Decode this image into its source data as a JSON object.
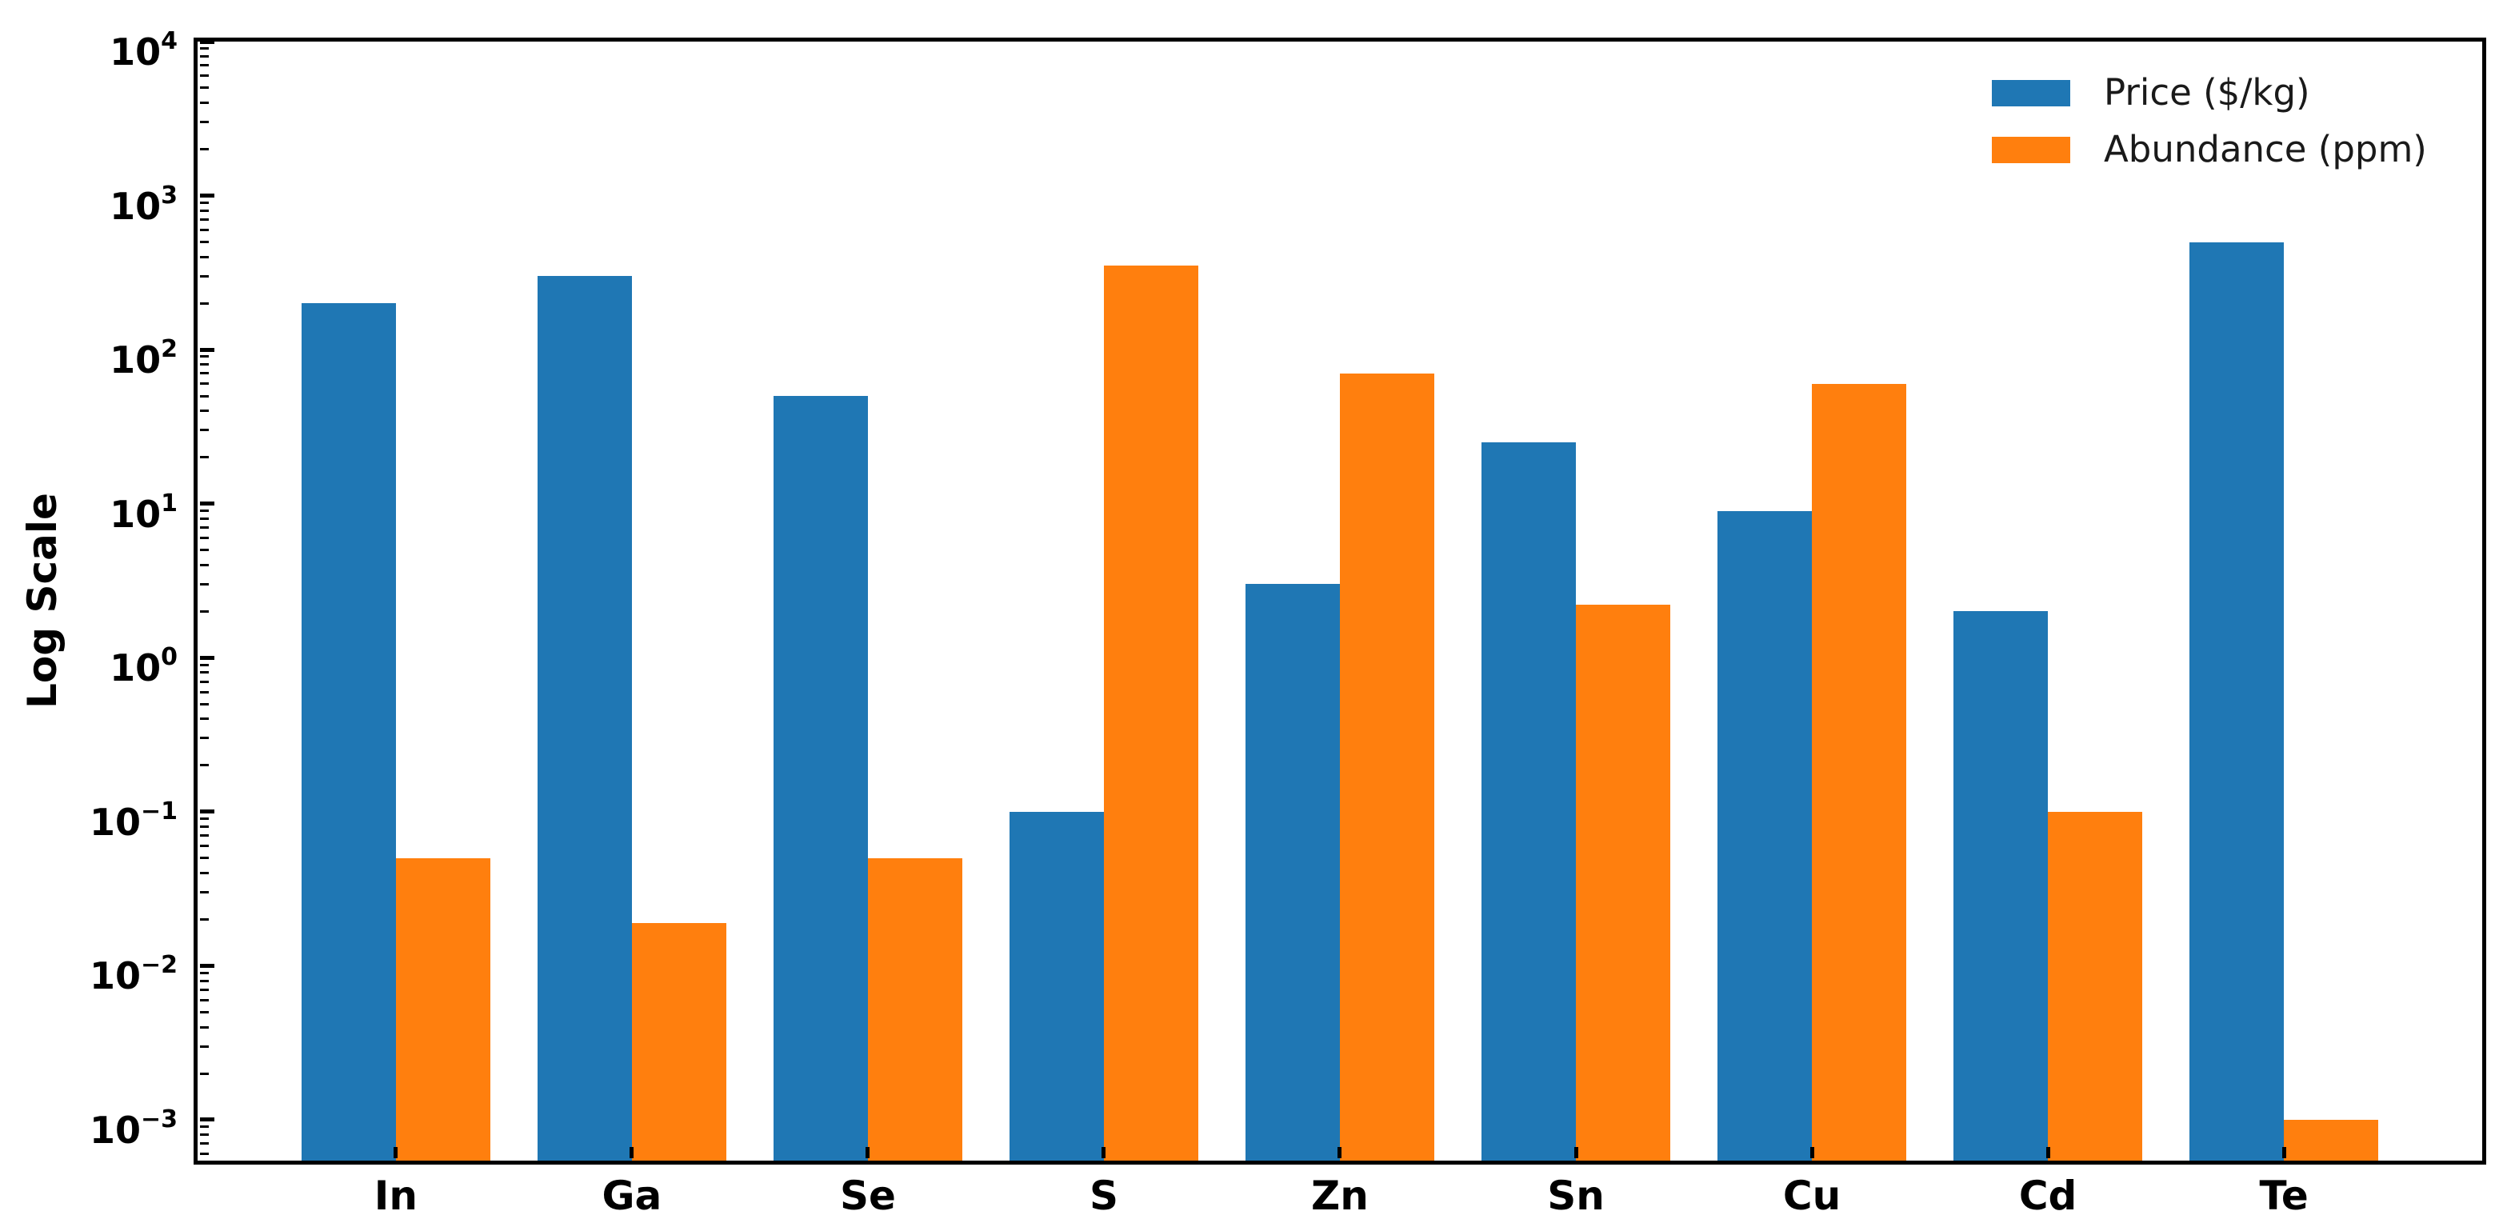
{
  "chart_data": {
    "type": "bar",
    "title": "",
    "xlabel": "",
    "ylabel": "Log Scale",
    "yscale": "log",
    "ylim": [
      0.000543,
      10000
    ],
    "grid": false,
    "legend_position": "upper right",
    "categories": [
      "In",
      "Ga",
      "Se",
      "S",
      "Zn",
      "Sn",
      "Cu",
      "Cd",
      "Te"
    ],
    "series": [
      {
        "name": "Price ($/kg)",
        "color": "#1f77b4",
        "values": [
          200,
          300,
          50,
          0.1,
          3,
          25,
          9,
          2,
          500
        ]
      },
      {
        "name": "Abundance (ppm)",
        "color": "#ff7f0e",
        "values": [
          0.05,
          0.019,
          0.05,
          350,
          70,
          2.2,
          60,
          0.1,
          0.001
        ]
      }
    ],
    "y_ticks": [
      {
        "base": "10",
        "exp": "4"
      },
      {
        "base": "10",
        "exp": "3"
      },
      {
        "base": "10",
        "exp": "2"
      },
      {
        "base": "10",
        "exp": "1"
      },
      {
        "base": "10",
        "exp": "0"
      },
      {
        "base": "10",
        "exp": "−1"
      },
      {
        "base": "10",
        "exp": "−2"
      },
      {
        "base": "10",
        "exp": "−3"
      }
    ],
    "y_tick_exponents": [
      4,
      3,
      2,
      1,
      0,
      -1,
      -2,
      -3
    ]
  }
}
